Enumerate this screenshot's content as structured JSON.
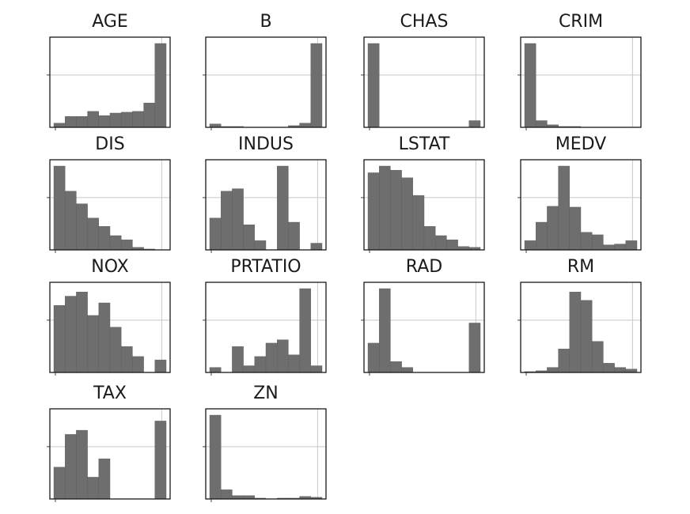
{
  "chart_data": [
    {
      "type": "histogram",
      "title": "AGE",
      "values": [
        0.05,
        0.13,
        0.13,
        0.19,
        0.14,
        0.17,
        0.18,
        0.19,
        0.29,
        1.0
      ]
    },
    {
      "type": "histogram",
      "title": "B",
      "values": [
        0.04,
        0.01,
        0.01,
        0.0,
        0.0,
        0.0,
        0.0,
        0.02,
        0.05,
        1.0
      ]
    },
    {
      "type": "histogram",
      "title": "CHAS",
      "values": [
        1.0,
        0.0,
        0.0,
        0.0,
        0.0,
        0.0,
        0.0,
        0.0,
        0.0,
        0.08
      ]
    },
    {
      "type": "histogram",
      "title": "CRIM",
      "values": [
        1.0,
        0.08,
        0.03,
        0.01,
        0.01,
        0.0,
        0.0,
        0.0,
        0.0,
        0.0
      ]
    },
    {
      "type": "histogram",
      "title": "DIS",
      "values": [
        1.0,
        0.7,
        0.55,
        0.38,
        0.28,
        0.17,
        0.12,
        0.03,
        0.01,
        0.0
      ]
    },
    {
      "type": "histogram",
      "title": "INDUS",
      "values": [
        0.38,
        0.7,
        0.73,
        0.3,
        0.11,
        0.0,
        1.0,
        0.33,
        0.0,
        0.08
      ]
    },
    {
      "type": "histogram",
      "title": "LSTAT",
      "values": [
        0.92,
        1.0,
        0.95,
        0.86,
        0.65,
        0.28,
        0.17,
        0.12,
        0.04,
        0.03
      ]
    },
    {
      "type": "histogram",
      "title": "MEDV",
      "values": [
        0.11,
        0.33,
        0.52,
        1.0,
        0.51,
        0.21,
        0.18,
        0.06,
        0.07,
        0.11
      ]
    },
    {
      "type": "histogram",
      "title": "NOX",
      "values": [
        0.8,
        0.91,
        0.96,
        0.68,
        0.83,
        0.54,
        0.31,
        0.19,
        0.0,
        0.15
      ]
    },
    {
      "type": "histogram",
      "title": "PRTATIO",
      "values": [
        0.06,
        0.0,
        0.31,
        0.08,
        0.19,
        0.35,
        0.39,
        0.21,
        1.0,
        0.08
      ]
    },
    {
      "type": "histogram",
      "title": "RAD",
      "values": [
        0.35,
        1.0,
        0.13,
        0.06,
        0.0,
        0.0,
        0.0,
        0.0,
        0.0,
        0.59
      ]
    },
    {
      "type": "histogram",
      "title": "RM",
      "values": [
        0.01,
        0.02,
        0.06,
        0.28,
        0.96,
        0.86,
        0.37,
        0.11,
        0.06,
        0.04
      ]
    },
    {
      "type": "histogram",
      "title": "TAX",
      "values": [
        0.38,
        0.77,
        0.82,
        0.26,
        0.48,
        0.0,
        0.0,
        0.0,
        0.0,
        0.93
      ]
    },
    {
      "type": "histogram",
      "title": "ZN",
      "values": [
        1.0,
        0.11,
        0.04,
        0.04,
        0.01,
        0.0,
        0.01,
        0.01,
        0.03,
        0.02
      ]
    }
  ]
}
